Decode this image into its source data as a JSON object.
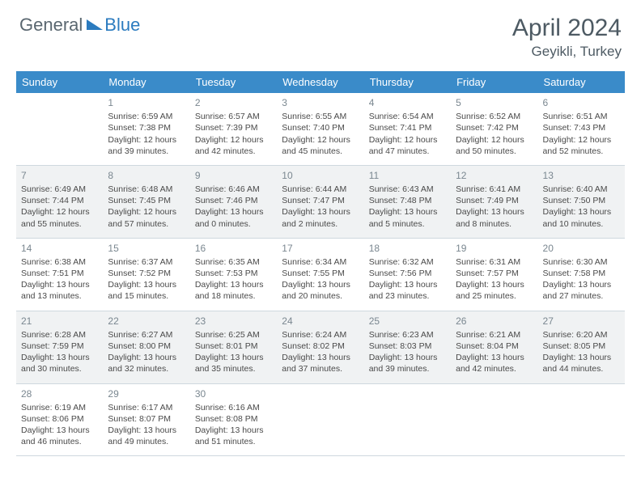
{
  "logo": {
    "text1": "General",
    "text2": "Blue",
    "color1": "#5a6770",
    "color2": "#2b7bbf",
    "triangle_color": "#2b7bbf"
  },
  "title": "April 2024",
  "location": "Geyikli, Turkey",
  "colors": {
    "header_bg": "#3a8bc9",
    "header_fg": "#ffffff",
    "shaded_bg": "#f0f2f3",
    "border": "#cfd8de",
    "daynum": "#7a8790",
    "text": "#4a4a4a",
    "title": "#4d5a63"
  },
  "day_names": [
    "Sunday",
    "Monday",
    "Tuesday",
    "Wednesday",
    "Thursday",
    "Friday",
    "Saturday"
  ],
  "weeks": [
    [
      {
        "blank": true
      },
      {
        "n": "1",
        "sr": "6:59 AM",
        "ss": "7:38 PM",
        "dl": "12 hours and 39 minutes."
      },
      {
        "n": "2",
        "sr": "6:57 AM",
        "ss": "7:39 PM",
        "dl": "12 hours and 42 minutes."
      },
      {
        "n": "3",
        "sr": "6:55 AM",
        "ss": "7:40 PM",
        "dl": "12 hours and 45 minutes."
      },
      {
        "n": "4",
        "sr": "6:54 AM",
        "ss": "7:41 PM",
        "dl": "12 hours and 47 minutes."
      },
      {
        "n": "5",
        "sr": "6:52 AM",
        "ss": "7:42 PM",
        "dl": "12 hours and 50 minutes."
      },
      {
        "n": "6",
        "sr": "6:51 AM",
        "ss": "7:43 PM",
        "dl": "12 hours and 52 minutes."
      }
    ],
    [
      {
        "n": "7",
        "sr": "6:49 AM",
        "ss": "7:44 PM",
        "dl": "12 hours and 55 minutes."
      },
      {
        "n": "8",
        "sr": "6:48 AM",
        "ss": "7:45 PM",
        "dl": "12 hours and 57 minutes."
      },
      {
        "n": "9",
        "sr": "6:46 AM",
        "ss": "7:46 PM",
        "dl": "13 hours and 0 minutes."
      },
      {
        "n": "10",
        "sr": "6:44 AM",
        "ss": "7:47 PM",
        "dl": "13 hours and 2 minutes."
      },
      {
        "n": "11",
        "sr": "6:43 AM",
        "ss": "7:48 PM",
        "dl": "13 hours and 5 minutes."
      },
      {
        "n": "12",
        "sr": "6:41 AM",
        "ss": "7:49 PM",
        "dl": "13 hours and 8 minutes."
      },
      {
        "n": "13",
        "sr": "6:40 AM",
        "ss": "7:50 PM",
        "dl": "13 hours and 10 minutes."
      }
    ],
    [
      {
        "n": "14",
        "sr": "6:38 AM",
        "ss": "7:51 PM",
        "dl": "13 hours and 13 minutes."
      },
      {
        "n": "15",
        "sr": "6:37 AM",
        "ss": "7:52 PM",
        "dl": "13 hours and 15 minutes."
      },
      {
        "n": "16",
        "sr": "6:35 AM",
        "ss": "7:53 PM",
        "dl": "13 hours and 18 minutes."
      },
      {
        "n": "17",
        "sr": "6:34 AM",
        "ss": "7:55 PM",
        "dl": "13 hours and 20 minutes."
      },
      {
        "n": "18",
        "sr": "6:32 AM",
        "ss": "7:56 PM",
        "dl": "13 hours and 23 minutes."
      },
      {
        "n": "19",
        "sr": "6:31 AM",
        "ss": "7:57 PM",
        "dl": "13 hours and 25 minutes."
      },
      {
        "n": "20",
        "sr": "6:30 AM",
        "ss": "7:58 PM",
        "dl": "13 hours and 27 minutes."
      }
    ],
    [
      {
        "n": "21",
        "sr": "6:28 AM",
        "ss": "7:59 PM",
        "dl": "13 hours and 30 minutes."
      },
      {
        "n": "22",
        "sr": "6:27 AM",
        "ss": "8:00 PM",
        "dl": "13 hours and 32 minutes."
      },
      {
        "n": "23",
        "sr": "6:25 AM",
        "ss": "8:01 PM",
        "dl": "13 hours and 35 minutes."
      },
      {
        "n": "24",
        "sr": "6:24 AM",
        "ss": "8:02 PM",
        "dl": "13 hours and 37 minutes."
      },
      {
        "n": "25",
        "sr": "6:23 AM",
        "ss": "8:03 PM",
        "dl": "13 hours and 39 minutes."
      },
      {
        "n": "26",
        "sr": "6:21 AM",
        "ss": "8:04 PM",
        "dl": "13 hours and 42 minutes."
      },
      {
        "n": "27",
        "sr": "6:20 AM",
        "ss": "8:05 PM",
        "dl": "13 hours and 44 minutes."
      }
    ],
    [
      {
        "n": "28",
        "sr": "6:19 AM",
        "ss": "8:06 PM",
        "dl": "13 hours and 46 minutes."
      },
      {
        "n": "29",
        "sr": "6:17 AM",
        "ss": "8:07 PM",
        "dl": "13 hours and 49 minutes."
      },
      {
        "n": "30",
        "sr": "6:16 AM",
        "ss": "8:08 PM",
        "dl": "13 hours and 51 minutes."
      },
      {
        "blank": true,
        "tail": true
      },
      {
        "blank": true,
        "tail": true
      },
      {
        "blank": true,
        "tail": true
      },
      {
        "blank": true,
        "tail": true
      }
    ]
  ],
  "shaded_rows": [
    false,
    true,
    false,
    true,
    false
  ],
  "labels": {
    "sunrise": "Sunrise:",
    "sunset": "Sunset:",
    "daylight": "Daylight:"
  }
}
